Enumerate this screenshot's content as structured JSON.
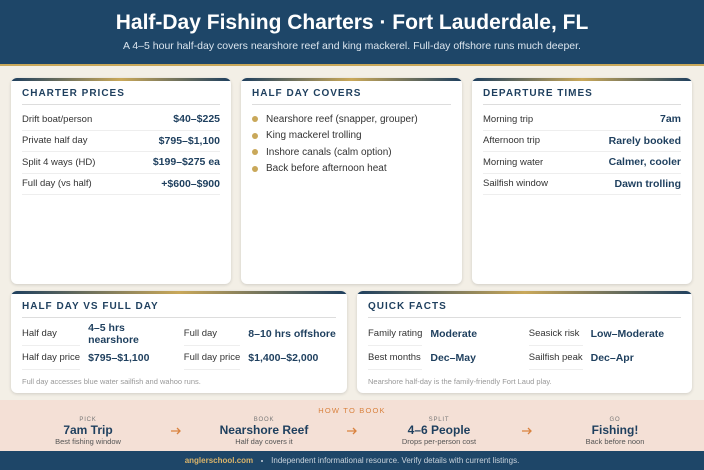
{
  "header": {
    "title": "Half-Day Fishing Charters · Fort Lauderdale, FL",
    "subtitle": "A 4–5 hour half-day covers nearshore reef and king mackerel. Full-day offshore runs much deeper."
  },
  "charter_prices": {
    "heading": "CHARTER PRICES",
    "rows": [
      [
        "Drift boat/person",
        "$40–$225"
      ],
      [
        "Private half day",
        "$795–$1,100"
      ],
      [
        "Split 4 ways (HD)",
        "$199–$275 ea"
      ],
      [
        "Full day (vs half)",
        "+$600–$900"
      ]
    ]
  },
  "half_day_covers": {
    "heading": "HALF DAY COVERS",
    "items": [
      "Nearshore reef (snapper, grouper)",
      "King mackerel trolling",
      "Inshore canals (calm option)",
      "Back before afternoon heat"
    ]
  },
  "departure_times": {
    "heading": "DEPARTURE TIMES",
    "rows": [
      [
        "Morning trip",
        "7am"
      ],
      [
        "Afternoon trip",
        "Rarely booked"
      ],
      [
        "Morning water",
        "Calmer, cooler"
      ],
      [
        "Sailfish window",
        "Dawn trolling"
      ]
    ]
  },
  "half_vs_full": {
    "heading": "HALF DAY VS FULL DAY",
    "rows": [
      [
        "Half day",
        "4–5 hrs nearshore",
        "Full day",
        "8–10 hrs offshore"
      ],
      [
        "Half day price",
        "$795–$1,100",
        "Full day price",
        "$1,400–$2,000"
      ]
    ],
    "note": "Full day accesses blue water sailfish and wahoo runs."
  },
  "quick_facts": {
    "heading": "QUICK FACTS",
    "rows": [
      [
        "Family rating",
        "Moderate",
        "Seasick risk",
        "Low–Moderate"
      ],
      [
        "Best months",
        "Dec–May",
        "Sailfish peak",
        "Dec–Apr"
      ]
    ],
    "note": "Nearshore half-day is the family-friendly Fort Laud play."
  },
  "how_to_book": {
    "heading": "HOW TO BOOK",
    "steps": [
      {
        "label": "PICK",
        "value": "7am Trip",
        "caption": "Best fishing window"
      },
      {
        "label": "BOOK",
        "value": "Nearshore Reef",
        "caption": "Half day covers it"
      },
      {
        "label": "SPLIT",
        "value": "4–6 People",
        "caption": "Drops per-person cost"
      },
      {
        "label": "GO",
        "value": "Fishing!",
        "caption": "Back before noon"
      }
    ]
  },
  "footer": {
    "site": "anglerschool.com",
    "text": "Independent informational resource. Verify details with current listings."
  }
}
